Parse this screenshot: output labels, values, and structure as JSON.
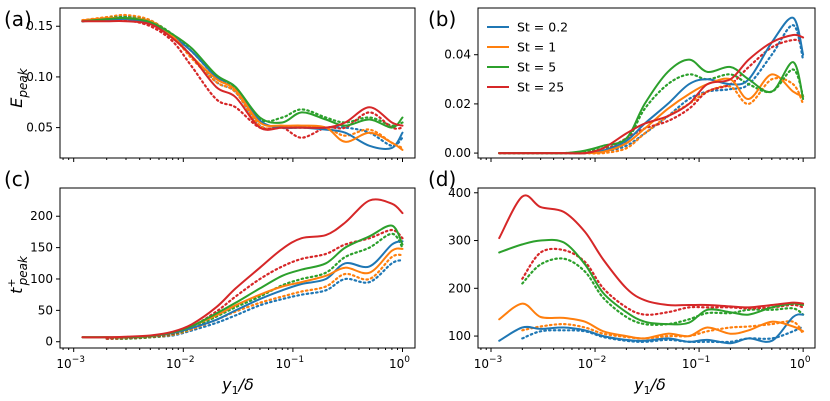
{
  "colors": {
    "St = 0.2": "#1f77b4",
    "St = 1": "#ff7f0e",
    "St = 5": "#2ca02c",
    "St = 25": "#d62728"
  },
  "legend": {
    "placement": "top-left of panel (b)",
    "entries": [
      "St = 0.2",
      "St = 1",
      "St = 5",
      "St = 25"
    ]
  },
  "chart_data": [
    {
      "panel": "a",
      "panel_label": "(a)",
      "type": "line",
      "xscale": "log",
      "xlim": [
        0.00075,
        1.3
      ],
      "ylim": [
        0.02,
        0.168
      ],
      "x_tick_labels": [],
      "y_ticks": [
        0.05,
        0.1,
        0.15
      ],
      "y_tick_labels": [
        "0.05",
        "0.10",
        "0.15"
      ],
      "ylabel_main": "E",
      "ylabel_sub": "peak",
      "x": [
        0.0012,
        0.002,
        0.003,
        0.005,
        0.008,
        0.012,
        0.02,
        0.03,
        0.05,
        0.08,
        0.12,
        0.2,
        0.3,
        0.5,
        0.8,
        1.0
      ],
      "series": [
        {
          "name": "St = 0.2",
          "style": "solid",
          "values": [
            0.155,
            0.156,
            0.157,
            0.153,
            0.14,
            0.125,
            0.1,
            0.09,
            0.057,
            0.05,
            0.05,
            0.048,
            0.045,
            0.032,
            0.03,
            0.045
          ]
        },
        {
          "name": "St = 1",
          "style": "solid",
          "values": [
            0.156,
            0.158,
            0.158,
            0.155,
            0.14,
            0.12,
            0.098,
            0.087,
            0.055,
            0.052,
            0.052,
            0.05,
            0.036,
            0.045,
            0.035,
            0.028
          ]
        },
        {
          "name": "St = 5",
          "style": "solid",
          "values": [
            0.155,
            0.157,
            0.158,
            0.154,
            0.142,
            0.128,
            0.102,
            0.09,
            0.06,
            0.055,
            0.065,
            0.058,
            0.052,
            0.058,
            0.05,
            0.06
          ]
        },
        {
          "name": "St = 25",
          "style": "solid",
          "values": [
            0.155,
            0.155,
            0.155,
            0.152,
            0.138,
            0.12,
            0.09,
            0.08,
            0.05,
            0.05,
            0.05,
            0.05,
            0.055,
            0.07,
            0.055,
            0.052
          ]
        },
        {
          "name": "St = 0.2",
          "style": "dotted",
          "values": [
            0.155,
            0.158,
            0.16,
            0.155,
            0.14,
            0.12,
            0.095,
            0.085,
            0.052,
            0.05,
            0.05,
            0.05,
            0.05,
            0.045,
            0.032,
            0.04
          ]
        },
        {
          "name": "St = 1",
          "style": "dotted",
          "values": [
            0.156,
            0.159,
            0.161,
            0.156,
            0.14,
            0.118,
            0.095,
            0.085,
            0.052,
            0.05,
            0.05,
            0.05,
            0.042,
            0.048,
            0.035,
            0.03
          ]
        },
        {
          "name": "St = 5",
          "style": "dotted",
          "values": [
            0.155,
            0.158,
            0.159,
            0.155,
            0.142,
            0.125,
            0.1,
            0.088,
            0.058,
            0.06,
            0.068,
            0.06,
            0.055,
            0.06,
            0.052,
            0.055
          ]
        },
        {
          "name": "St = 25",
          "style": "dotted",
          "values": [
            0.155,
            0.156,
            0.156,
            0.15,
            0.135,
            0.11,
            0.078,
            0.07,
            0.05,
            0.05,
            0.04,
            0.05,
            0.05,
            0.065,
            0.05,
            0.05
          ]
        }
      ]
    },
    {
      "panel": "b",
      "panel_label": "(b)",
      "type": "line",
      "xscale": "log",
      "xlim": [
        0.00075,
        1.3
      ],
      "ylim": [
        -0.002,
        0.059
      ],
      "x_tick_labels": [],
      "y_ticks": [
        0.0,
        0.02,
        0.04
      ],
      "y_tick_labels": [
        "0.00",
        "0.02",
        "0.04"
      ],
      "x": [
        0.0012,
        0.002,
        0.003,
        0.005,
        0.008,
        0.012,
        0.02,
        0.03,
        0.05,
        0.08,
        0.12,
        0.2,
        0.3,
        0.5,
        0.8,
        1.0
      ],
      "series": [
        {
          "name": "St = 0.2",
          "style": "solid",
          "values": [
            0.0,
            0.0,
            0.0,
            0.0,
            0.0,
            0.001,
            0.005,
            0.012,
            0.02,
            0.028,
            0.03,
            0.028,
            0.03,
            0.045,
            0.055,
            0.04
          ]
        },
        {
          "name": "St = 1",
          "style": "solid",
          "values": [
            0.0,
            0.0,
            0.0,
            0.0,
            0.0,
            0.0005,
            0.004,
            0.01,
            0.018,
            0.024,
            0.028,
            0.03,
            0.022,
            0.032,
            0.025,
            0.023
          ]
        },
        {
          "name": "St = 5",
          "style": "solid",
          "values": [
            0.0,
            0.0,
            0.0,
            0.0,
            0.001,
            0.003,
            0.006,
            0.02,
            0.033,
            0.038,
            0.033,
            0.035,
            0.03,
            0.025,
            0.037,
            0.022
          ]
        },
        {
          "name": "St = 25",
          "style": "solid",
          "values": [
            0.0,
            0.0,
            0.0,
            0.0,
            0.0,
            0.002,
            0.008,
            0.012,
            0.015,
            0.02,
            0.028,
            0.03,
            0.038,
            0.045,
            0.048,
            0.047
          ]
        },
        {
          "name": "St = 0.2",
          "style": "dotted",
          "values": [
            0.0,
            0.0,
            0.0,
            0.0,
            0.0,
            0.0005,
            0.003,
            0.008,
            0.015,
            0.022,
            0.025,
            0.026,
            0.028,
            0.04,
            0.052,
            0.038
          ]
        },
        {
          "name": "St = 1",
          "style": "dotted",
          "values": [
            0.0,
            0.0,
            0.0,
            0.0,
            0.0,
            0.0,
            0.002,
            0.008,
            0.015,
            0.02,
            0.025,
            0.027,
            0.02,
            0.03,
            0.028,
            0.02
          ]
        },
        {
          "name": "St = 5",
          "style": "dotted",
          "values": [
            0.0,
            0.0,
            0.0,
            0.0,
            0.0005,
            0.002,
            0.005,
            0.018,
            0.028,
            0.032,
            0.03,
            0.032,
            0.028,
            0.025,
            0.034,
            0.023
          ]
        },
        {
          "name": "St = 25",
          "style": "dotted",
          "values": [
            0.0,
            0.0,
            0.0,
            0.0,
            0.0,
            0.001,
            0.006,
            0.01,
            0.013,
            0.018,
            0.025,
            0.028,
            0.035,
            0.043,
            0.046,
            0.045
          ]
        }
      ]
    },
    {
      "panel": "c",
      "panel_label": "(c)",
      "type": "line",
      "xscale": "log",
      "xlim": [
        0.00075,
        1.3
      ],
      "ylim": [
        -10,
        245
      ],
      "x_tick_labels": [
        "10",
        "10",
        "10",
        "10"
      ],
      "x_tick_exps": [
        "−3",
        "−2",
        "−1",
        "0"
      ],
      "y_ticks": [
        0,
        50,
        100,
        150,
        200
      ],
      "y_tick_labels": [
        "0",
        "50",
        "100",
        "150",
        "200"
      ],
      "ylabel_main": "t",
      "ylabel_sup": "+",
      "ylabel_sub": "peak",
      "xlabel_main": "y",
      "xlabel_sub": "1",
      "xlabel_rest": "/δ",
      "x": [
        0.0012,
        0.002,
        0.003,
        0.005,
        0.008,
        0.012,
        0.02,
        0.03,
        0.05,
        0.08,
        0.12,
        0.2,
        0.3,
        0.5,
        0.8,
        1.0
      ],
      "series": [
        {
          "name": "St = 0.2",
          "style": "solid",
          "values": [
            7,
            7,
            7,
            9,
            14,
            22,
            35,
            50,
            68,
            82,
            92,
            100,
            125,
            120,
            155,
            160
          ]
        },
        {
          "name": "St = 1",
          "style": "solid",
          "values": [
            7,
            7,
            7,
            9,
            15,
            25,
            42,
            58,
            75,
            88,
            95,
            105,
            118,
            110,
            145,
            148
          ]
        },
        {
          "name": "St = 5",
          "style": "solid",
          "values": [
            7,
            7,
            7,
            9,
            15,
            25,
            45,
            62,
            85,
            105,
            115,
            125,
            150,
            168,
            185,
            155
          ]
        },
        {
          "name": "St = 25",
          "style": "solid",
          "values": [
            7,
            7,
            8,
            10,
            16,
            28,
            55,
            85,
            118,
            148,
            165,
            170,
            190,
            225,
            220,
            205
          ]
        },
        {
          "name": "St = 0.2",
          "style": "dotted",
          "values": [
            null,
            5,
            5,
            7,
            10,
            18,
            30,
            42,
            58,
            68,
            75,
            82,
            100,
            95,
            125,
            130
          ]
        },
        {
          "name": "St = 1",
          "style": "dotted",
          "values": [
            null,
            5,
            5,
            7,
            11,
            20,
            35,
            48,
            62,
            72,
            80,
            88,
            108,
            100,
            135,
            138
          ]
        },
        {
          "name": "St = 5",
          "style": "dotted",
          "values": [
            null,
            5,
            5,
            7,
            12,
            22,
            40,
            55,
            72,
            90,
            100,
            110,
            135,
            150,
            172,
            150
          ]
        },
        {
          "name": "St = 25",
          "style": "dotted",
          "values": [
            null,
            5,
            6,
            8,
            13,
            24,
            48,
            72,
            100,
            120,
            132,
            140,
            155,
            165,
            178,
            165
          ]
        }
      ]
    },
    {
      "panel": "d",
      "panel_label": "(d)",
      "type": "line",
      "xscale": "log",
      "xlim": [
        0.00075,
        1.3
      ],
      "ylim": [
        75,
        410
      ],
      "x_tick_labels": [
        "10",
        "10",
        "10",
        "10"
      ],
      "x_tick_exps": [
        "−3",
        "−2",
        "−1",
        "0"
      ],
      "y_ticks": [
        100,
        200,
        300,
        400
      ],
      "y_tick_labels": [
        "100",
        "200",
        "300",
        "400"
      ],
      "xlabel_main": "y",
      "xlabel_sub": "1",
      "xlabel_rest": "/δ",
      "x": [
        0.0012,
        0.002,
        0.003,
        0.005,
        0.008,
        0.012,
        0.02,
        0.03,
        0.05,
        0.08,
        0.12,
        0.2,
        0.3,
        0.5,
        0.8,
        1.0
      ],
      "series": [
        {
          "name": "St = 0.2",
          "style": "solid",
          "values": [
            90,
            118,
            115,
            118,
            112,
            100,
            92,
            90,
            95,
            88,
            92,
            85,
            95,
            90,
            140,
            145
          ]
        },
        {
          "name": "St = 1",
          "style": "solid",
          "values": [
            135,
            168,
            140,
            138,
            130,
            110,
            100,
            95,
            105,
            100,
            118,
            105,
            112,
            130,
            120,
            110
          ]
        },
        {
          "name": "St = 5",
          "style": "solid",
          "values": [
            275,
            292,
            300,
            296,
            250,
            190,
            150,
            130,
            125,
            128,
            155,
            150,
            145,
            160,
            168,
            165
          ]
        },
        {
          "name": "St = 25",
          "style": "solid",
          "values": [
            305,
            392,
            370,
            360,
            318,
            260,
            200,
            175,
            165,
            165,
            165,
            162,
            160,
            165,
            170,
            168
          ]
        },
        {
          "name": "St = 0.2",
          "style": "dotted",
          "values": [
            null,
            95,
            110,
            112,
            110,
            98,
            90,
            88,
            92,
            88,
            88,
            88,
            95,
            95,
            110,
            120
          ]
        },
        {
          "name": "St = 1",
          "style": "dotted",
          "values": [
            null,
            112,
            120,
            125,
            118,
            105,
            98,
            95,
            100,
            100,
            110,
            118,
            120,
            125,
            130,
            105
          ]
        },
        {
          "name": "St = 5",
          "style": "dotted",
          "values": [
            null,
            210,
            250,
            262,
            235,
            180,
            140,
            125,
            125,
            135,
            148,
            148,
            155,
            155,
            158,
            145
          ]
        },
        {
          "name": "St = 25",
          "style": "dotted",
          "values": [
            null,
            220,
            275,
            280,
            255,
            200,
            160,
            145,
            150,
            160,
            160,
            160,
            158,
            160,
            165,
            160
          ]
        }
      ]
    }
  ]
}
